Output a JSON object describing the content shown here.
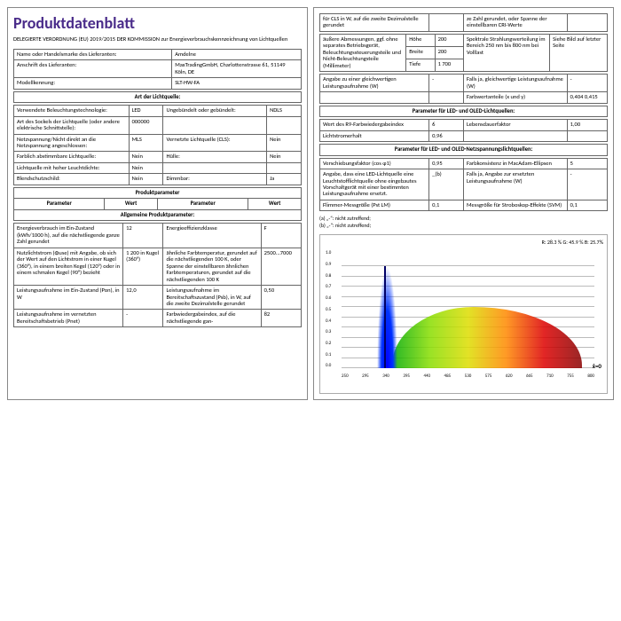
{
  "title": "Produktdatenblatt",
  "subtitle": "DELEGIERTE VERORDNUNG (EU) 2019/2015 DER KOMMISSION zur Energieverbrauchskennzeichnung von Lichtquellen",
  "supplier": {
    "nameLabel": "Name oder Handelsmarke des Lieferanten:",
    "name": "Amdelne",
    "addrLabel": "Anschrift des Lieferanten:",
    "addr": "MaxTradingGmbH, Charlottenstrasse 61, 51149 Köln, DE",
    "modelLabel": "Modellkennung:",
    "model": "SLT-HW-FA"
  },
  "artHdr": "Art der Lichtquelle:",
  "art": [
    [
      "Verwendete Beleuchtungstechnologie:",
      "LED",
      "Ungebündelt oder gebündelt:",
      "NDLS"
    ],
    [
      "Art des Sockels der Lichtquelle (oder andere elektrische Schnittstelle):",
      "000000",
      "",
      ""
    ],
    [
      "Netzspannung/Nicht direkt an die Netzspannung angeschlossen:",
      "MLS",
      "Vernetzte Lichtquelle (CLS):",
      "Nein"
    ],
    [
      "Farblich abstimmbare Lichtquelle:",
      "Nein",
      "Hülle:",
      "Nein"
    ],
    [
      "Lichtquelle mit hoher Leuchtdichte:",
      "Nein",
      "",
      ""
    ],
    [
      "Blendschutzschild:",
      "Nein",
      "Dimmbar:",
      "Ja"
    ]
  ],
  "paramHdr": "Produktparameter",
  "paramCols": [
    "Parameter",
    "Wert",
    "Parameter",
    "Wert"
  ],
  "allgHdr": "Allgemeine Produktparameter:",
  "allg": [
    [
      "Energieverbrauch im Ein-Zustand (kWh/1000 h), auf die nächstliegende ganze Zahl gerundet",
      "12",
      "Energieeffizienzklasse",
      "F"
    ],
    [
      "Nutzlichtstrom (Φuse) mit Angabe, ob sich der Wert auf den Lichtstrom in einer Kugel (360°), in einem breiten Kegel (120°) oder in einem schmalen Kegel (90°) bezieht",
      "1 200 in Kugel (360°)",
      "ähnliche Farbtemperatur, gerundet auf die nächstliegenden 100 K, oder Spanne der einstellbaren ähnlichen Farbtemperaturen, gerundet auf die nächstliegenden 100 K",
      "2500...7000"
    ],
    [
      "Leistungsaufnahme im Ein-Zustand (Pon), in W",
      "12,0",
      "Leistungsaufnahme im Bereitschaftszustand (Psb), in W, auf die zweite Dezimalstelle gerundet",
      "0,50"
    ],
    [
      "Leistungsaufnahme im vernetzten Bereitschaftsbetrieb (Pnet)",
      "-",
      "Farbwiedergabeindex, auf die nächstliegende gan-",
      "82"
    ]
  ],
  "col2top": [
    [
      "für CLS in W, auf die zweite Dezimalstelle gerundet",
      "",
      "ze Zahl gerundet, oder Spanne der einstellbaren CRI-Werte",
      ""
    ]
  ],
  "dims": {
    "label": "äußere Abmessungen, ggf. ohne separates Betriebsgerät, Beleuchtungssteuerungsteile und Nicht-Beleuchtungsteile (Millimeter)",
    "rows": [
      [
        "Höhe",
        "200"
      ],
      [
        "Breite",
        "200"
      ],
      [
        "Tiefe",
        "1 700"
      ]
    ],
    "right": "Spektrale Strahlungsverteilung im Bereich 250 nm bis 800 nm bei Volllast",
    "rightVal": "Siehe Bild auf letzter Seite"
  },
  "equiv": [
    [
      "Angabe zu einer gleichwertigen Leistungsaufnahme (W)",
      "-",
      "Falls ja, gleichwertige Leistungsaufnahme (W)",
      "-"
    ],
    [
      "",
      "",
      "Farbwertanteile (x und y)",
      "0,404\n0,415"
    ]
  ],
  "ledHdr": "Parameter für LED- und OLED-Lichtquellen:",
  "led": [
    [
      "Wert des R9-Farbwiedergabeindex",
      "6",
      "Lebensdauerfaktor",
      "1,00"
    ],
    [
      "Lichtstromerhalt",
      "0,96",
      "",
      ""
    ]
  ],
  "netzHdr": "Parameter für LED- und OLED-Netzspannungslichtquellen:",
  "netz": [
    [
      "Verschiebungsfaktor (cos φ1)",
      "0,95",
      "Farbkonsistenz in MacAdam-Ellipsen",
      "5"
    ],
    [
      "Angabe, dass eine LED-Lichtquelle eine Leuchtstofflichtquelle ohne eingebautes Vorschaltgerät mit einer bestimmten Leistungsaufnahme ersetzt.",
      "_(b)",
      "Falls ja, Angabe zur ersetzten Leistungsaufnahme (W)",
      "-"
    ],
    [
      "Flimmer-Messgröße (Pst LM)",
      "0,1",
      "Messgröße für Stroboskop-Effekte (SVM)",
      "0,1"
    ]
  ],
  "footnotes": [
    "(a) „-“: nicht zutreffend;",
    "(b) „-“: nicht zutreffend;"
  ],
  "chart": {
    "title": "R: 28.3 %  G: 45.9 %  B: 25.7%",
    "yTicks": [
      "0.0",
      "0.1",
      "0.2",
      "0.3",
      "0.4",
      "0.5",
      "0.6",
      "0.7",
      "0.8",
      "0.9",
      "1.0"
    ],
    "xTicks": [
      "250",
      "295",
      "340",
      "395",
      "440",
      "485",
      "530",
      "575",
      "620",
      "665",
      "710",
      "755",
      "800"
    ],
    "xLabel": "ẋ=0"
  }
}
